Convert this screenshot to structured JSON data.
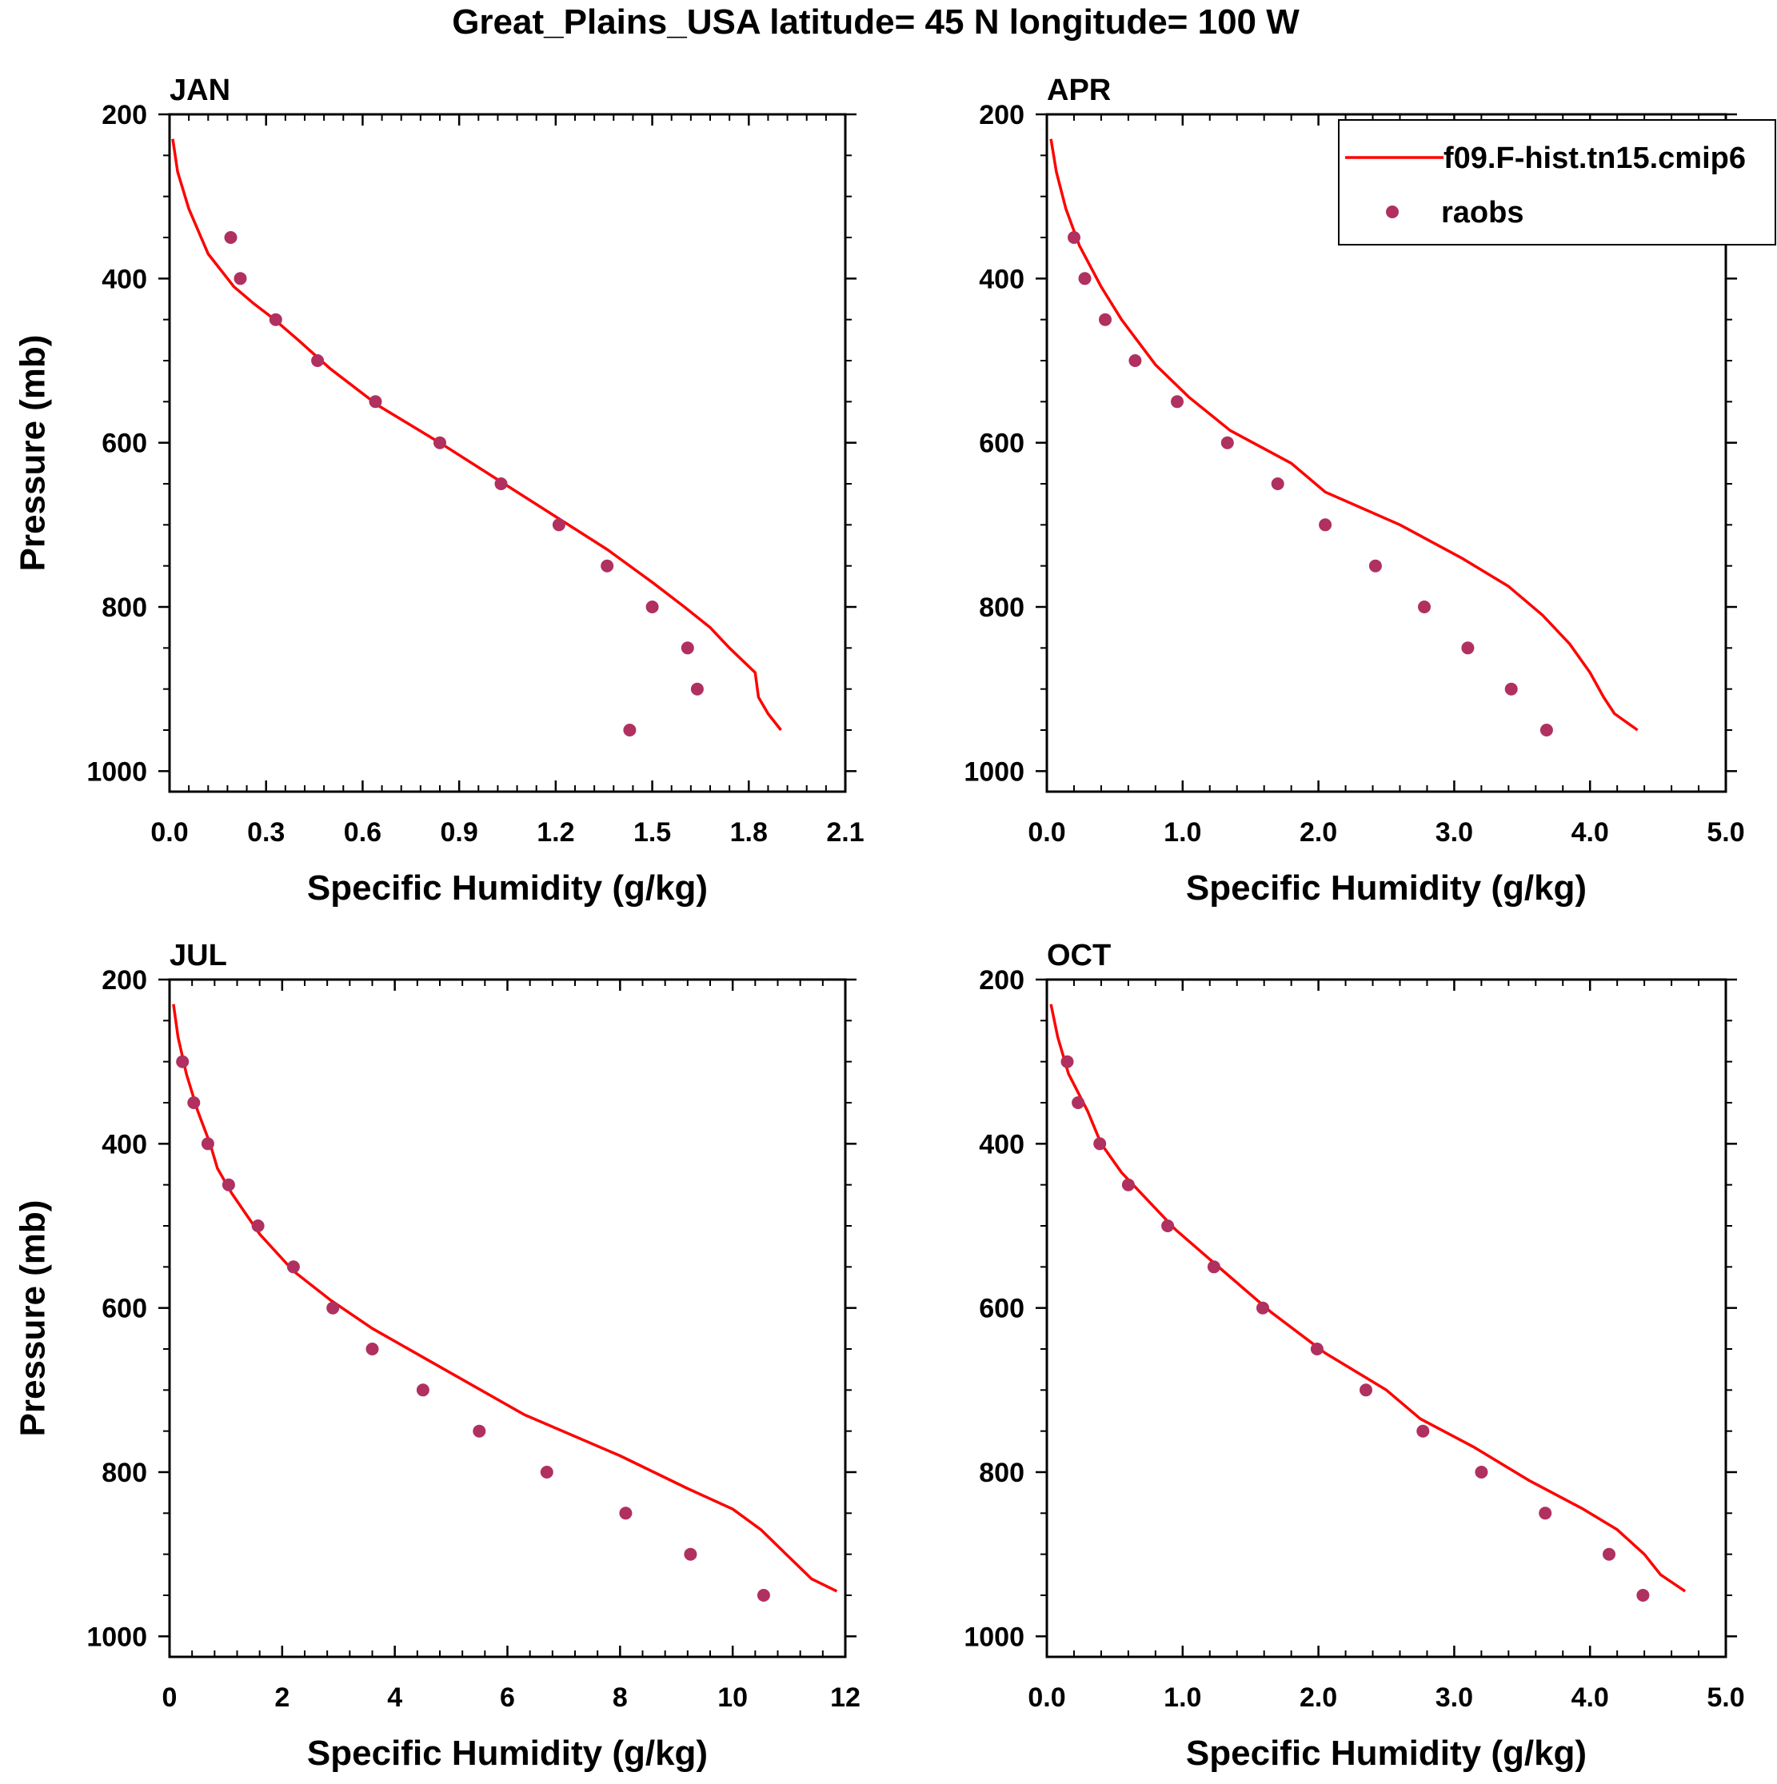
{
  "figure": {
    "title": "Great_Plains_USA  latitude= 45 N longitude= 100 W"
  },
  "colors": {
    "model": "#ff0000",
    "obs": "#b03060",
    "axes": "#000000",
    "background": "#ffffff"
  },
  "legend": {
    "location": "top-right (APR panel)",
    "model_label": "f09.F-hist.tn15.cmip6",
    "obs_label": "raobs"
  },
  "chart_data": [
    {
      "type": "line",
      "title": "JAN",
      "xlabel": "Specific Humidity (g/kg)",
      "ylabel": "Pressure (mb)",
      "xlim": [
        0,
        2.1
      ],
      "ylim": [
        1025,
        200
      ],
      "y_inverted": true,
      "xticks": [
        "0.0",
        "0.3",
        "0.6",
        "0.9",
        "1.2",
        "1.5",
        "1.8",
        "2.1"
      ],
      "xtick_values": [
        0,
        0.3,
        0.6,
        0.9,
        1.2,
        1.5,
        1.8,
        2.1
      ],
      "yticks": [
        "200",
        "400",
        "600",
        "800",
        "1000"
      ],
      "ytick_values": [
        200,
        400,
        600,
        800,
        1000
      ],
      "series": [
        {
          "name": "f09.F-hist.tn15.cmip6",
          "kind": "line",
          "points": [
            [
              0.01,
              230
            ],
            [
              0.025,
              270
            ],
            [
              0.06,
              315
            ],
            [
              0.12,
              370
            ],
            [
              0.2,
              410
            ],
            [
              0.26,
              430
            ],
            [
              0.32,
              448
            ],
            [
              0.4,
              475
            ],
            [
              0.5,
              510
            ],
            [
              0.65,
              555
            ],
            [
              0.84,
              600
            ],
            [
              1.02,
              645
            ],
            [
              1.2,
              690
            ],
            [
              1.36,
              730
            ],
            [
              1.5,
              770
            ],
            [
              1.6,
              800
            ],
            [
              1.68,
              825
            ],
            [
              1.74,
              850
            ],
            [
              1.82,
              880
            ],
            [
              1.83,
              910
            ],
            [
              1.86,
              930
            ],
            [
              1.9,
              950
            ]
          ]
        },
        {
          "name": "raobs",
          "kind": "scatter",
          "points": [
            [
              0.19,
              350
            ],
            [
              0.22,
              400
            ],
            [
              0.33,
              450
            ],
            [
              0.46,
              500
            ],
            [
              0.64,
              550
            ],
            [
              0.84,
              600
            ],
            [
              1.03,
              650
            ],
            [
              1.21,
              700
            ],
            [
              1.36,
              750
            ],
            [
              1.5,
              800
            ],
            [
              1.61,
              850
            ],
            [
              1.64,
              900
            ],
            [
              1.43,
              950
            ]
          ]
        }
      ]
    },
    {
      "type": "line",
      "title": "APR",
      "xlabel": "Specific Humidity (g/kg)",
      "ylabel": "",
      "xlim": [
        0,
        5
      ],
      "ylim": [
        1025,
        200
      ],
      "y_inverted": true,
      "xticks": [
        "0.0",
        "1.0",
        "2.0",
        "3.0",
        "4.0",
        "5.0"
      ],
      "xtick_values": [
        0,
        1,
        2,
        3,
        4,
        5
      ],
      "yticks": [
        "200",
        "400",
        "600",
        "800",
        "1000"
      ],
      "ytick_values": [
        200,
        400,
        600,
        800,
        1000
      ],
      "series": [
        {
          "name": "f09.F-hist.tn15.cmip6",
          "kind": "line",
          "points": [
            [
              0.03,
              230
            ],
            [
              0.07,
              270
            ],
            [
              0.14,
              315
            ],
            [
              0.24,
              360
            ],
            [
              0.4,
              410
            ],
            [
              0.55,
              450
            ],
            [
              0.8,
              505
            ],
            [
              1.05,
              545
            ],
            [
              1.35,
              585
            ],
            [
              1.8,
              625
            ],
            [
              2.05,
              660
            ],
            [
              2.6,
              700
            ],
            [
              3.05,
              740
            ],
            [
              3.4,
              775
            ],
            [
              3.65,
              810
            ],
            [
              3.85,
              845
            ],
            [
              4.0,
              880
            ],
            [
              4.1,
              910
            ],
            [
              4.18,
              930
            ],
            [
              4.35,
              950
            ]
          ]
        },
        {
          "name": "raobs",
          "kind": "scatter",
          "points": [
            [
              0.2,
              350
            ],
            [
              0.28,
              400
            ],
            [
              0.43,
              450
            ],
            [
              0.65,
              500
            ],
            [
              0.96,
              550
            ],
            [
              1.33,
              600
            ],
            [
              1.7,
              650
            ],
            [
              2.05,
              700
            ],
            [
              2.42,
              750
            ],
            [
              2.78,
              800
            ],
            [
              3.1,
              850
            ],
            [
              3.42,
              900
            ],
            [
              3.68,
              950
            ]
          ]
        }
      ]
    },
    {
      "type": "line",
      "title": "JUL",
      "xlabel": "Specific Humidity (g/kg)",
      "ylabel": "Pressure (mb)",
      "xlim": [
        0,
        12
      ],
      "ylim": [
        1025,
        200
      ],
      "y_inverted": true,
      "xticks": [
        "0",
        "2",
        "4",
        "6",
        "8",
        "10",
        "12"
      ],
      "xtick_values": [
        0,
        2,
        4,
        6,
        8,
        10,
        12
      ],
      "yticks": [
        "200",
        "400",
        "600",
        "800",
        "1000"
      ],
      "ytick_values": [
        200,
        400,
        600,
        800,
        1000
      ],
      "series": [
        {
          "name": "f09.F-hist.tn15.cmip6",
          "kind": "line",
          "points": [
            [
              0.07,
              230
            ],
            [
              0.15,
              270
            ],
            [
              0.3,
              315
            ],
            [
              0.5,
              360
            ],
            [
              0.72,
              400
            ],
            [
              0.85,
              430
            ],
            [
              1.1,
              460
            ],
            [
              1.6,
              510
            ],
            [
              2.2,
              555
            ],
            [
              2.85,
              590
            ],
            [
              3.6,
              625
            ],
            [
              4.5,
              660
            ],
            [
              6.3,
              730
            ],
            [
              8.0,
              780
            ],
            [
              9.2,
              820
            ],
            [
              10.0,
              845
            ],
            [
              10.5,
              870
            ],
            [
              10.95,
              900
            ],
            [
              11.4,
              930
            ],
            [
              11.85,
              945
            ]
          ]
        },
        {
          "name": "raobs",
          "kind": "scatter",
          "points": [
            [
              0.23,
              300
            ],
            [
              0.43,
              350
            ],
            [
              0.68,
              400
            ],
            [
              1.05,
              450
            ],
            [
              1.57,
              500
            ],
            [
              2.2,
              550
            ],
            [
              2.9,
              600
            ],
            [
              3.6,
              650
            ],
            [
              4.5,
              700
            ],
            [
              5.5,
              750
            ],
            [
              6.7,
              800
            ],
            [
              8.1,
              850
            ],
            [
              9.25,
              900
            ],
            [
              10.55,
              950
            ]
          ]
        }
      ]
    },
    {
      "type": "line",
      "title": "OCT",
      "xlabel": "Specific Humidity (g/kg)",
      "ylabel": "",
      "xlim": [
        0,
        5
      ],
      "ylim": [
        1025,
        200
      ],
      "y_inverted": true,
      "xticks": [
        "0.0",
        "1.0",
        "2.0",
        "3.0",
        "4.0",
        "5.0"
      ],
      "xtick_values": [
        0,
        1,
        2,
        3,
        4,
        5
      ],
      "yticks": [
        "200",
        "400",
        "600",
        "800",
        "1000"
      ],
      "ytick_values": [
        200,
        400,
        600,
        800,
        1000
      ],
      "series": [
        {
          "name": "f09.F-hist.tn15.cmip6",
          "kind": "line",
          "points": [
            [
              0.03,
              230
            ],
            [
              0.08,
              270
            ],
            [
              0.16,
              315
            ],
            [
              0.3,
              360
            ],
            [
              0.4,
              400
            ],
            [
              0.55,
              435
            ],
            [
              0.75,
              470
            ],
            [
              0.95,
              505
            ],
            [
              1.3,
              555
            ],
            [
              1.65,
              605
            ],
            [
              2.05,
              655
            ],
            [
              2.5,
              700
            ],
            [
              2.75,
              735
            ],
            [
              3.15,
              770
            ],
            [
              3.55,
              810
            ],
            [
              3.95,
              845
            ],
            [
              4.2,
              870
            ],
            [
              4.4,
              900
            ],
            [
              4.52,
              925
            ],
            [
              4.7,
              945
            ]
          ]
        },
        {
          "name": "raobs",
          "kind": "scatter",
          "points": [
            [
              0.15,
              300
            ],
            [
              0.23,
              350
            ],
            [
              0.39,
              400
            ],
            [
              0.6,
              450
            ],
            [
              0.89,
              500
            ],
            [
              1.23,
              550
            ],
            [
              1.59,
              600
            ],
            [
              1.99,
              650
            ],
            [
              2.35,
              700
            ],
            [
              2.77,
              750
            ],
            [
              3.2,
              800
            ],
            [
              3.67,
              850
            ],
            [
              4.14,
              900
            ],
            [
              4.39,
              950
            ]
          ]
        }
      ]
    }
  ]
}
